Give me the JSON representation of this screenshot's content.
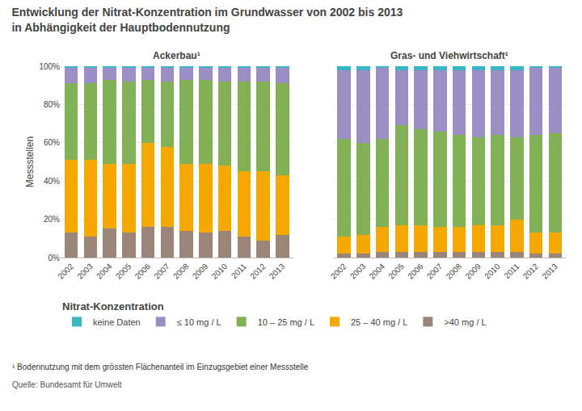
{
  "title": [
    "Entwicklung der Nitrat-Konzentration im Grundwasser von 2002 bis 2013",
    "in Abhängigkeit der Hauptbodennutzung"
  ],
  "legend_title": "Nitrat-Konzentration",
  "legend": "bottom",
  "annotations": [
    "¹ Bodennutzung mit dem grössten Flächenanteil im Einzugsgebiet einer Messstelle",
    "Quelle: Bundesamt für Umwelt"
  ],
  "chart_data": [
    {
      "type": "bar",
      "stacked": true,
      "title": "Ackerbau¹",
      "ylabel": "Messstellen",
      "categories": [
        2002,
        2003,
        2004,
        2005,
        2006,
        2007,
        2008,
        2009,
        2010,
        2011,
        2012,
        2013
      ],
      "series": [
        {
          "name": ">40 mg / L",
          "color": "#9b8478",
          "values": [
            13,
            11,
            15,
            13,
            16,
            16,
            14,
            13,
            14,
            11,
            9,
            12
          ]
        },
        {
          "name": "25 – 40 mg / L",
          "color": "#f5a800",
          "values": [
            38,
            40,
            34,
            36,
            44,
            42,
            35,
            36,
            34,
            34,
            36,
            31
          ]
        },
        {
          "name": "10 – 25 mg / L",
          "color": "#82b054",
          "values": [
            40,
            40,
            44,
            43,
            33,
            34,
            44,
            44,
            44,
            47,
            47,
            48
          ]
        },
        {
          "name": "≤ 10 mg / L",
          "color": "#9b8ec4",
          "values": [
            8,
            8,
            6,
            7,
            6,
            7,
            6,
            6,
            7,
            7,
            7,
            8
          ]
        },
        {
          "name": "keine Daten",
          "color": "#3ab5c6",
          "values": [
            1,
            1,
            1,
            1,
            1,
            1,
            1,
            1,
            1,
            1,
            1,
            1
          ]
        }
      ],
      "ylim": [
        0,
        100
      ],
      "yticks": [
        {
          "value": 0,
          "label": "0%"
        },
        {
          "value": 20,
          "label": "20%"
        },
        {
          "value": 40,
          "label": "40%"
        },
        {
          "value": 60,
          "label": "60%"
        },
        {
          "value": 80,
          "label": "80%"
        },
        {
          "value": 100,
          "label": "100%"
        }
      ],
      "grid": true
    },
    {
      "type": "bar",
      "stacked": true,
      "title": "Gras- und Viehwirtschaft¹",
      "categories": [
        2002,
        2003,
        2004,
        2005,
        2006,
        2007,
        2008,
        2009,
        2010,
        2011,
        2012,
        2013
      ],
      "series": [
        {
          "name": ">40 mg / L",
          "color": "#9b8478",
          "values": [
            2,
            2,
            3,
            3,
            3,
            3,
            3,
            3,
            3,
            3,
            2,
            2
          ]
        },
        {
          "name": "25 – 40 mg / L",
          "color": "#f5a800",
          "values": [
            9,
            10,
            13,
            14,
            14,
            13,
            13,
            14,
            14,
            17,
            11,
            11
          ]
        },
        {
          "name": "10 – 25 mg / L",
          "color": "#82b054",
          "values": [
            51,
            48,
            46,
            52,
            50,
            50,
            48,
            46,
            47,
            43,
            51,
            52
          ]
        },
        {
          "name": "≤ 10 mg / L",
          "color": "#9b8ec4",
          "values": [
            36,
            38,
            37,
            29,
            31,
            32,
            34,
            35,
            34,
            35,
            35,
            34
          ]
        },
        {
          "name": "keine Daten",
          "color": "#3ab5c6",
          "values": [
            2,
            2,
            1,
            2,
            2,
            2,
            2,
            2,
            2,
            2,
            1,
            1
          ]
        }
      ],
      "ylim": [
        0,
        100
      ],
      "yticks": [
        0,
        20,
        40,
        60,
        80,
        100
      ],
      "tick_labels": "x",
      "grid": true
    }
  ]
}
